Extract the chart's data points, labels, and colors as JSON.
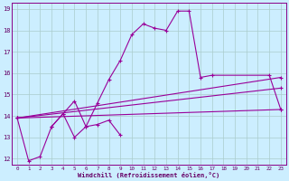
{
  "xlabel": "Windchill (Refroidissement éolien,°C)",
  "bg_color": "#cceeff",
  "grid_color": "#aacccc",
  "line_color": "#990099",
  "xlim": [
    -0.5,
    23.5
  ],
  "ylim": [
    11.7,
    19.3
  ],
  "xticks": [
    0,
    1,
    2,
    3,
    4,
    5,
    6,
    7,
    8,
    9,
    10,
    11,
    12,
    13,
    14,
    15,
    16,
    17,
    18,
    19,
    20,
    21,
    22,
    23
  ],
  "yticks": [
    12,
    13,
    14,
    15,
    16,
    17,
    18,
    19
  ],
  "series": [
    {
      "x": [
        0,
        1,
        2,
        3,
        4,
        5,
        6,
        7,
        8,
        9,
        10,
        11,
        12,
        13,
        14,
        15,
        16,
        17,
        22,
        23
      ],
      "y": [
        13.9,
        11.9,
        12.1,
        13.5,
        14.1,
        13.0,
        13.5,
        14.6,
        15.7,
        16.6,
        17.8,
        18.3,
        18.1,
        18.0,
        18.9,
        18.9,
        15.8,
        15.9,
        15.9,
        14.3
      ]
    },
    {
      "x": [
        0,
        23
      ],
      "y": [
        13.9,
        15.8
      ]
    },
    {
      "x": [
        0,
        23
      ],
      "y": [
        13.9,
        15.3
      ]
    },
    {
      "x": [
        0,
        23
      ],
      "y": [
        13.9,
        14.3
      ]
    },
    {
      "x": [
        3,
        4,
        5,
        6,
        7,
        8,
        9
      ],
      "y": [
        13.5,
        14.1,
        14.7,
        13.5,
        13.6,
        13.8,
        13.1
      ]
    }
  ]
}
